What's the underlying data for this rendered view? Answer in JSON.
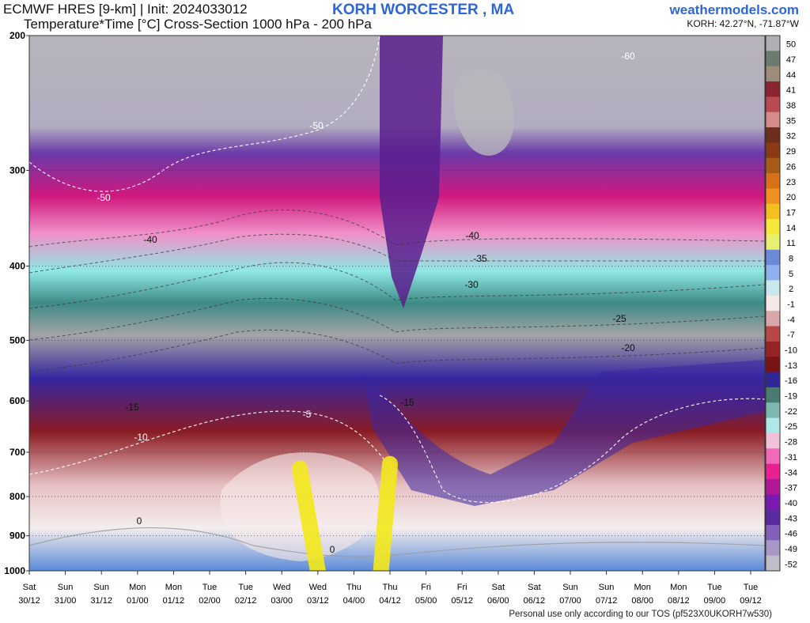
{
  "header": {
    "title_line1": "ECMWF HRES [9-km] | Init: 2024033012",
    "title_line2": "Temperature*Time [°C] Cross-Section 1000 hPa - 200 hPa",
    "station": "KORH WORCESTER     , MA",
    "brand": "weathermodels.com",
    "coords": "KORH: 42.27°N, -71.87°W"
  },
  "footer": {
    "text": "Personal use only according to our TOS (pf523X0UKORH7w530)"
  },
  "chart_data": {
    "type": "heatmap",
    "title": "Temperature*Time [°C] Cross-Section 1000 hPa - 200 hPa",
    "y_axis": {
      "ticks": [
        "200",
        "300",
        "400",
        "500",
        "600",
        "700",
        "800",
        "900",
        "1000"
      ],
      "range": [
        1000,
        200
      ]
    },
    "x_axis": {
      "days": [
        "Sat",
        "Sun",
        "Sun",
        "Mon",
        "Mon",
        "Tue",
        "Tue",
        "Wed",
        "Wed",
        "Thu",
        "Thu",
        "Fri",
        "Fri",
        "Sat",
        "Sat",
        "Sun",
        "Sun",
        "Mon",
        "Mon",
        "Tue",
        "Tue"
      ],
      "times": [
        "30/12",
        "31/00",
        "31/12",
        "01/00",
        "01/12",
        "02/00",
        "02/12",
        "03/00",
        "03/12",
        "04/00",
        "04/12",
        "05/00",
        "05/12",
        "06/00",
        "06/12",
        "07/00",
        "07/12",
        "08/00",
        "08/12",
        "09/00",
        "09/12"
      ]
    },
    "colorbar": {
      "labels": [
        "50",
        "47",
        "44",
        "41",
        "38",
        "35",
        "32",
        "29",
        "26",
        "23",
        "20",
        "17",
        "14",
        "11",
        "8",
        "5",
        "2",
        "-1",
        "-4",
        "-7",
        "-10",
        "-13",
        "-16",
        "-19",
        "-22",
        "-25",
        "-28",
        "-31",
        "-34",
        "-37",
        "-40",
        "-43",
        "-46",
        "-49",
        "-52"
      ],
      "colors": [
        "#b0b0b4",
        "#6c7c6c",
        "#9c8c78",
        "#8c2430",
        "#b84a50",
        "#d68a8a",
        "#6e2e1e",
        "#8a3a14",
        "#a65c16",
        "#d87018",
        "#f09020",
        "#f4c020",
        "#f6e83a",
        "#e8f070",
        "#6a8ad8",
        "#8fb0ee",
        "#c8e8ee",
        "#f6e8e8",
        "#d8a8a8",
        "#b84848",
        "#962424",
        "#7a1414",
        "#302898",
        "#4a7a74",
        "#7cb8b0",
        "#aee8e8",
        "#f2c0d8",
        "#f06ab8",
        "#e82090",
        "#b01898",
        "#7a1ab0",
        "#5a2aa0",
        "#8060b8",
        "#a898c8",
        "#c0bcc8"
      ]
    },
    "contours": [
      {
        "label": "-60",
        "level": -60
      },
      {
        "label": "-50",
        "level": -50
      },
      {
        "label": "-40",
        "level": -40
      },
      {
        "label": "-35",
        "level": -35
      },
      {
        "label": "-30",
        "level": -30
      },
      {
        "label": "-25",
        "level": -25
      },
      {
        "label": "-20",
        "level": -20
      },
      {
        "label": "-15",
        "level": -15
      },
      {
        "label": "-10",
        "level": -10
      },
      {
        "label": "-5",
        "level": -5
      },
      {
        "label": "0",
        "level": 0
      }
    ],
    "highlights": [
      {
        "type": "yellow-band",
        "time_from": "03/12",
        "time_to": "03/06",
        "p_from": 1000,
        "p_to": 735
      },
      {
        "type": "yellow-band",
        "time_from": "04/09",
        "time_to": "04/12",
        "p_from": 1000,
        "p_to": 725
      }
    ]
  }
}
